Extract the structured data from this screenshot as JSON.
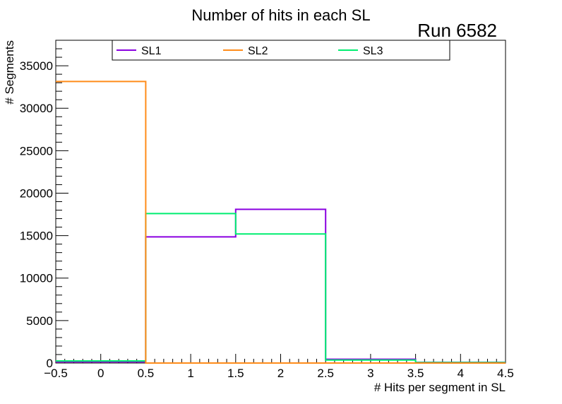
{
  "chart_data": {
    "type": "histogram-step",
    "title": "Number of hits in each SL",
    "annotation": "Run 6582",
    "xlabel": "# Hits per segment in SL",
    "ylabel": "# Segments",
    "xlim": [
      -0.5,
      4.5
    ],
    "ylim": [
      0,
      38000
    ],
    "x_ticks": [
      -0.5,
      0,
      0.5,
      1,
      1.5,
      2,
      2.5,
      3,
      3.5,
      4,
      4.5
    ],
    "x_tick_labels": [
      "−0.5",
      "0",
      "0.5",
      "1",
      "1.5",
      "2",
      "2.5",
      "3",
      "3.5",
      "4",
      "4.5"
    ],
    "y_ticks": [
      0,
      5000,
      10000,
      15000,
      20000,
      25000,
      30000,
      35000
    ],
    "y_tick_labels": [
      "0",
      "5000",
      "10000",
      "15000",
      "20000",
      "25000",
      "30000",
      "35000"
    ],
    "bin_edges": [
      -0.5,
      0.5,
      1.5,
      2.5,
      3.5,
      4.5
    ],
    "grid": false,
    "legend_position": "top",
    "series": [
      {
        "name": "SL1",
        "color": "#8a00e0",
        "values": [
          150,
          14850,
          18100,
          450,
          80
        ]
      },
      {
        "name": "SL2",
        "color": "#ff8c1a",
        "values": [
          33150,
          0,
          0,
          0,
          0
        ]
      },
      {
        "name": "SL3",
        "color": "#00ee70",
        "values": [
          250,
          17600,
          15200,
          350,
          60
        ]
      }
    ]
  }
}
